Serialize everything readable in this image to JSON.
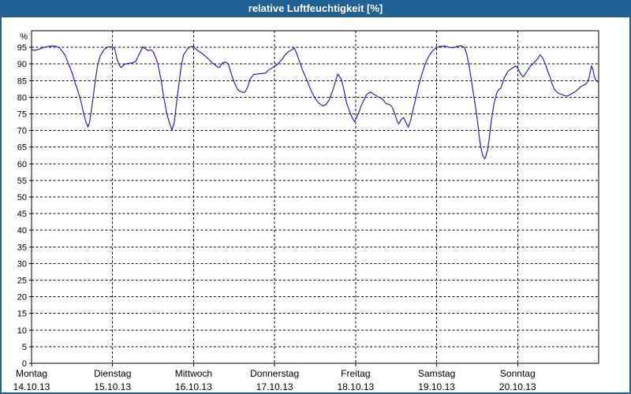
{
  "window": {
    "title": "relative Luftfeuchtigkeit [%]"
  },
  "colors": {
    "titlebar_blue": "#206092",
    "title_text": "#ffffff",
    "line_blue": "#2323c8",
    "grid_black": "#000000",
    "plot_background": "#ffffff"
  },
  "chart_data": {
    "type": "line",
    "title": "relative Luftfeuchtigkeit [%]",
    "ylabel": "%",
    "ylim": [
      0,
      100
    ],
    "y_ticks": [
      0,
      5,
      10,
      15,
      20,
      25,
      30,
      35,
      40,
      45,
      50,
      55,
      60,
      65,
      70,
      75,
      80,
      85,
      90,
      95
    ],
    "grid": "dashed",
    "x_unit": "hours from Monday 00:00",
    "xlim": [
      0,
      168
    ],
    "x_labels": [
      {
        "day": "Montag",
        "date": "14.10.13",
        "t": 0
      },
      {
        "day": "Dienstag",
        "date": "15.10.13",
        "t": 24
      },
      {
        "day": "Mittwoch",
        "date": "16.10.13",
        "t": 48
      },
      {
        "day": "Donnerstag",
        "date": "17.10.13",
        "t": 72
      },
      {
        "day": "Freitag",
        "date": "18.10.13",
        "t": 96
      },
      {
        "day": "Samstag",
        "date": "19.10.13",
        "t": 120
      },
      {
        "day": "Sonntag",
        "date": "20.10.13",
        "t": 144
      }
    ],
    "series": [
      {
        "name": "relative Luftfeuchtigkeit",
        "color": "#2323c8",
        "points": [
          [
            0,
            94.3
          ],
          [
            1,
            94.1
          ],
          [
            2.2,
            94.4
          ],
          [
            3.6,
            95.0
          ],
          [
            5,
            95.3
          ],
          [
            6.9,
            95.4
          ],
          [
            8.3,
            94.9
          ],
          [
            9.9,
            92.7
          ],
          [
            11.3,
            89.1
          ],
          [
            12.2,
            86.8
          ],
          [
            13,
            84.0
          ],
          [
            13.7,
            82.0
          ],
          [
            14.6,
            78.9
          ],
          [
            15.3,
            75.7
          ],
          [
            16,
            72.9
          ],
          [
            16.7,
            71.0
          ],
          [
            17.2,
            72.5
          ],
          [
            18,
            78.1
          ],
          [
            18.8,
            84.4
          ],
          [
            19.6,
            89.9
          ],
          [
            20.4,
            92.5
          ],
          [
            21.6,
            94.5
          ],
          [
            22.8,
            95.2
          ],
          [
            24,
            95.1
          ],
          [
            24.6,
            94.6
          ],
          [
            25.3,
            91.5
          ],
          [
            26,
            89.6
          ],
          [
            26.6,
            88.9
          ],
          [
            27.4,
            89.8
          ],
          [
            28.4,
            90.2
          ],
          [
            29.8,
            90.3
          ],
          [
            30.9,
            90.8
          ],
          [
            31.9,
            93.0
          ],
          [
            33,
            95.1
          ],
          [
            33.8,
            94.5
          ],
          [
            34.5,
            94.0
          ],
          [
            35.4,
            94.3
          ],
          [
            36.1,
            93.5
          ],
          [
            36.8,
            91.8
          ],
          [
            37.3,
            90.5
          ],
          [
            38.4,
            85.2
          ],
          [
            39.1,
            80.4
          ],
          [
            40.1,
            74.9
          ],
          [
            40.8,
            72.5
          ],
          [
            41.6,
            70.1
          ],
          [
            42.3,
            72.5
          ],
          [
            43.1,
            79.7
          ],
          [
            43.6,
            83.6
          ],
          [
            44.3,
            89.1
          ],
          [
            45,
            92.7
          ],
          [
            46.2,
            94.5
          ],
          [
            47.1,
            95.2
          ],
          [
            48,
            95.3
          ],
          [
            48.9,
            94.3
          ],
          [
            50.6,
            93.1
          ],
          [
            52,
            91.9
          ],
          [
            53.6,
            90.3
          ],
          [
            55,
            89.2
          ],
          [
            55.6,
            88.9
          ],
          [
            56.4,
            90.2
          ],
          [
            57.1,
            90.6
          ],
          [
            57.8,
            90.4
          ],
          [
            58.3,
            90.0
          ],
          [
            59,
            87.6
          ],
          [
            59.9,
            84.8
          ],
          [
            60.6,
            83.2
          ],
          [
            61.3,
            82.0
          ],
          [
            62.5,
            81.5
          ],
          [
            63.2,
            81.5
          ],
          [
            64.1,
            83.2
          ],
          [
            64.8,
            85.6
          ],
          [
            65.8,
            86.8
          ],
          [
            66.9,
            87.0
          ],
          [
            68.1,
            87.1
          ],
          [
            69.3,
            87.3
          ],
          [
            70,
            88.0
          ],
          [
            71.2,
            88.8
          ],
          [
            72,
            89.3
          ],
          [
            72.8,
            89.8
          ],
          [
            73.5,
            90.7
          ],
          [
            74.2,
            91.3
          ],
          [
            75.1,
            92.8
          ],
          [
            76.1,
            93.7
          ],
          [
            77,
            94.2
          ],
          [
            77.8,
            94.8
          ],
          [
            78.4,
            93.5
          ],
          [
            79.3,
            91.0
          ],
          [
            80.5,
            87.6
          ],
          [
            81.7,
            84.8
          ],
          [
            82.8,
            82.0
          ],
          [
            84,
            79.7
          ],
          [
            85.2,
            78.1
          ],
          [
            86.4,
            77.4
          ],
          [
            87.3,
            77.9
          ],
          [
            88.2,
            79.3
          ],
          [
            89.2,
            82.0
          ],
          [
            89.9,
            84.4
          ],
          [
            90.7,
            87.0
          ],
          [
            91.7,
            85.5
          ],
          [
            92.4,
            82.8
          ],
          [
            93.4,
            78.0
          ],
          [
            94.3,
            75.5
          ],
          [
            95,
            73.8
          ],
          [
            95.7,
            72.6
          ],
          [
            96,
            73.3
          ],
          [
            96.9,
            75.3
          ],
          [
            97.6,
            77.3
          ],
          [
            98.5,
            79.3
          ],
          [
            99.2,
            80.8
          ],
          [
            100.4,
            81.6
          ],
          [
            101.5,
            80.8
          ],
          [
            102.7,
            80.1
          ],
          [
            103.9,
            79.5
          ],
          [
            105,
            78.1
          ],
          [
            106.2,
            77.7
          ],
          [
            106.9,
            76.9
          ],
          [
            107.6,
            75.0
          ],
          [
            108.3,
            72.8
          ],
          [
            108.8,
            72.0
          ],
          [
            109.5,
            73.3
          ],
          [
            110.2,
            73.9
          ],
          [
            110.9,
            72.5
          ],
          [
            111.6,
            71.0
          ],
          [
            112.3,
            73.0
          ],
          [
            113.2,
            77.1
          ],
          [
            113.9,
            80.1
          ],
          [
            114.6,
            83.2
          ],
          [
            115.6,
            86.8
          ],
          [
            116.7,
            90.3
          ],
          [
            117.9,
            92.7
          ],
          [
            119.1,
            94.3
          ],
          [
            120,
            94.9
          ],
          [
            120.9,
            95.3
          ],
          [
            122.6,
            95.4
          ],
          [
            123.7,
            95.0
          ],
          [
            125.2,
            94.9
          ],
          [
            126.1,
            95.3
          ],
          [
            127.3,
            95.5
          ],
          [
            128.2,
            95.0
          ],
          [
            128.9,
            93.0
          ],
          [
            129.6,
            89.5
          ],
          [
            130.3,
            85.0
          ],
          [
            131,
            80.5
          ],
          [
            131.7,
            76.0
          ],
          [
            132.2,
            72.0
          ],
          [
            132.7,
            67.4
          ],
          [
            133.1,
            65.0
          ],
          [
            133.6,
            62.6
          ],
          [
            134.2,
            61.5
          ],
          [
            134.5,
            61.9
          ],
          [
            135.1,
            64.2
          ],
          [
            135.5,
            67.0
          ],
          [
            136.2,
            72.9
          ],
          [
            137,
            78.1
          ],
          [
            137.8,
            81.3
          ],
          [
            138.5,
            82.4
          ],
          [
            139,
            82.7
          ],
          [
            140.1,
            86.0
          ],
          [
            141.3,
            88.0
          ],
          [
            142.5,
            88.8
          ],
          [
            143.4,
            89.4
          ],
          [
            144,
            88.8
          ],
          [
            144.8,
            87.2
          ],
          [
            145.6,
            86.1
          ],
          [
            146.4,
            87.2
          ],
          [
            147.1,
            88.4
          ],
          [
            147.9,
            89.5
          ],
          [
            148.8,
            90.3
          ],
          [
            149.9,
            91.5
          ],
          [
            150.6,
            92.7
          ],
          [
            151.4,
            91.9
          ],
          [
            152.2,
            90.0
          ],
          [
            153,
            87.6
          ],
          [
            153.8,
            85.5
          ],
          [
            154.2,
            84.0
          ],
          [
            154.9,
            82.4
          ],
          [
            155.7,
            81.5
          ],
          [
            156.5,
            81.0
          ],
          [
            157.2,
            80.8
          ],
          [
            158,
            80.4
          ],
          [
            158.8,
            80.4
          ],
          [
            159.6,
            80.8
          ],
          [
            160.4,
            81.3
          ],
          [
            161.2,
            81.8
          ],
          [
            161.9,
            82.4
          ],
          [
            162.7,
            83.2
          ],
          [
            163.5,
            83.6
          ],
          [
            164.3,
            84.0
          ],
          [
            165.1,
            85.6
          ],
          [
            165.5,
            87.6
          ],
          [
            165.9,
            89.5
          ],
          [
            166.3,
            88.4
          ],
          [
            166.7,
            86.4
          ],
          [
            167.1,
            85.2
          ],
          [
            167.5,
            84.8
          ],
          [
            168,
            84.4
          ]
        ]
      }
    ]
  }
}
